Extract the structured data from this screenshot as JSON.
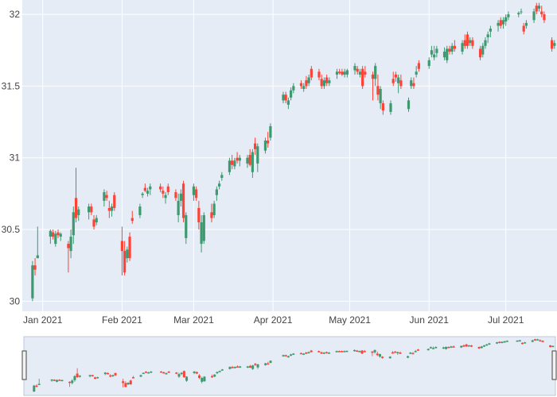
{
  "chart_data": {
    "type": "candlestick",
    "colors": {
      "plot_bg": "#e5ecf6",
      "grid": "#ffffff",
      "increasing": "#3d9970",
      "decreasing": "#ff4136",
      "handle": "#444444"
    },
    "y_ticks": [
      {
        "value": 30,
        "label": "30"
      },
      {
        "value": 30.5,
        "label": "30.5"
      },
      {
        "value": 31,
        "label": "31"
      },
      {
        "value": 31.5,
        "label": "31.5"
      },
      {
        "value": 32,
        "label": "32"
      }
    ],
    "x_ticks": [
      {
        "date": "2021-01-01",
        "label": "Jan 2021"
      },
      {
        "date": "2021-02-01",
        "label": "Feb 2021"
      },
      {
        "date": "2021-03-01",
        "label": "Mar 2021"
      },
      {
        "date": "2021-04-01",
        "label": "Apr 2021"
      },
      {
        "date": "2021-05-01",
        "label": "May 2021"
      },
      {
        "date": "2021-06-01",
        "label": "Jun 2021"
      },
      {
        "date": "2021-07-01",
        "label": "Jul 2021"
      }
    ],
    "x_range": [
      "2020-12-24",
      "2021-07-21"
    ],
    "y_range": [
      29.93,
      32.1
    ],
    "rangeslider": true,
    "candles": [
      [
        "2020-12-28",
        30.02,
        30.28,
        30.0,
        30.25
      ],
      [
        "2020-12-29",
        30.25,
        30.3,
        30.18,
        30.22
      ],
      [
        "2020-12-30",
        30.3,
        30.52,
        30.3,
        30.32
      ],
      [
        "2021-01-04",
        30.45,
        30.5,
        30.4,
        30.49
      ],
      [
        "2021-01-05",
        30.48,
        30.5,
        30.43,
        30.45
      ],
      [
        "2021-01-06",
        30.4,
        30.49,
        30.38,
        30.47
      ],
      [
        "2021-01-07",
        30.48,
        30.5,
        30.44,
        30.46
      ],
      [
        "2021-01-08",
        30.45,
        30.48,
        30.42,
        30.47
      ],
      [
        "2021-01-11",
        30.4,
        30.42,
        30.2,
        30.37
      ],
      [
        "2021-01-12",
        30.35,
        30.5,
        30.3,
        30.45
      ],
      [
        "2021-01-13",
        30.46,
        30.66,
        30.4,
        30.62
      ],
      [
        "2021-01-14",
        30.72,
        30.93,
        30.55,
        30.58
      ],
      [
        "2021-01-15",
        30.6,
        30.66,
        30.56,
        30.64
      ],
      [
        "2021-01-19",
        30.62,
        30.68,
        30.57,
        30.66
      ],
      [
        "2021-01-20",
        30.66,
        30.68,
        30.6,
        30.62
      ],
      [
        "2021-01-21",
        30.57,
        30.6,
        30.5,
        30.52
      ],
      [
        "2021-01-22",
        30.55,
        30.6,
        30.53,
        30.58
      ],
      [
        "2021-01-25",
        30.7,
        30.78,
        30.66,
        30.76
      ],
      [
        "2021-01-26",
        30.74,
        30.77,
        30.7,
        30.72
      ],
      [
        "2021-01-27",
        30.65,
        30.7,
        30.58,
        30.63
      ],
      [
        "2021-01-28",
        30.63,
        30.68,
        30.59,
        30.66
      ],
      [
        "2021-01-29",
        30.74,
        30.76,
        30.63,
        30.65
      ],
      [
        "2021-02-01",
        30.42,
        30.52,
        30.18,
        30.35
      ],
      [
        "2021-02-02",
        30.35,
        30.42,
        30.18,
        30.2
      ],
      [
        "2021-02-03",
        30.3,
        30.38,
        30.27,
        30.36
      ],
      [
        "2021-02-04",
        30.45,
        30.48,
        30.28,
        30.3
      ],
      [
        "2021-02-05",
        30.58,
        30.63,
        30.54,
        30.56
      ],
      [
        "2021-02-08",
        30.6,
        30.68,
        30.58,
        30.66
      ],
      [
        "2021-02-09",
        30.74,
        30.76,
        30.72,
        30.75
      ],
      [
        "2021-02-10",
        30.79,
        30.82,
        30.76,
        30.77
      ],
      [
        "2021-02-11",
        30.75,
        30.79,
        30.73,
        30.77
      ],
      [
        "2021-02-12",
        30.78,
        30.82,
        30.74,
        30.8
      ],
      [
        "2021-02-16",
        30.8,
        30.82,
        30.76,
        30.78
      ],
      [
        "2021-02-17",
        30.77,
        30.8,
        30.72,
        30.75
      ],
      [
        "2021-02-18",
        30.72,
        30.76,
        30.68,
        30.74
      ],
      [
        "2021-02-19",
        30.8,
        30.82,
        30.74,
        30.76
      ],
      [
        "2021-02-22",
        30.76,
        30.78,
        30.7,
        30.72
      ],
      [
        "2021-02-23",
        30.6,
        30.75,
        30.55,
        30.7
      ],
      [
        "2021-02-24",
        30.7,
        30.78,
        30.66,
        30.75
      ],
      [
        "2021-02-25",
        30.82,
        30.84,
        30.55,
        30.58
      ],
      [
        "2021-02-26",
        30.44,
        30.62,
        30.4,
        30.6
      ],
      [
        "2021-03-01",
        30.74,
        30.82,
        30.7,
        30.8
      ],
      [
        "2021-03-02",
        30.78,
        30.8,
        30.7,
        30.72
      ],
      [
        "2021-03-03",
        30.65,
        30.7,
        30.5,
        30.55
      ],
      [
        "2021-03-04",
        30.4,
        30.6,
        30.34,
        30.55
      ],
      [
        "2021-03-05",
        30.42,
        30.62,
        30.4,
        30.6
      ],
      [
        "2021-03-08",
        30.62,
        30.68,
        30.55,
        30.58
      ],
      [
        "2021-03-09",
        30.6,
        30.7,
        30.58,
        30.68
      ],
      [
        "2021-03-10",
        30.74,
        30.8,
        30.7,
        30.78
      ],
      [
        "2021-03-11",
        30.8,
        30.84,
        30.78,
        30.82
      ],
      [
        "2021-03-12",
        30.86,
        30.9,
        30.84,
        30.88
      ],
      [
        "2021-03-15",
        30.9,
        31.0,
        30.88,
        30.98
      ],
      [
        "2021-03-16",
        30.98,
        31.02,
        30.92,
        30.95
      ],
      [
        "2021-03-17",
        30.94,
        31.0,
        30.92,
        30.98
      ],
      [
        "2021-03-18",
        31.0,
        31.04,
        30.96,
        30.98
      ],
      [
        "2021-03-19",
        30.98,
        31.02,
        30.94,
        31.0
      ],
      [
        "2021-03-22",
        30.96,
        31.02,
        30.93,
        31.0
      ],
      [
        "2021-03-23",
        31.02,
        31.06,
        30.94,
        30.95
      ],
      [
        "2021-03-24",
        30.9,
        31.06,
        30.86,
        31.04
      ],
      [
        "2021-03-25",
        31.1,
        31.14,
        31.02,
        31.06
      ],
      [
        "2021-03-26",
        30.96,
        31.1,
        30.9,
        31.08
      ],
      [
        "2021-03-29",
        31.05,
        31.14,
        31.03,
        31.12
      ],
      [
        "2021-03-30",
        31.12,
        31.18,
        31.07,
        31.1
      ],
      [
        "2021-03-31",
        31.14,
        31.24,
        31.12,
        31.22
      ],
      [
        "2021-04-05",
        31.4,
        31.46,
        31.38,
        31.44
      ],
      [
        "2021-04-06",
        31.44,
        31.46,
        31.38,
        31.4
      ],
      [
        "2021-04-07",
        31.37,
        31.42,
        31.34,
        31.4
      ],
      [
        "2021-04-08",
        31.42,
        31.49,
        31.4,
        31.47
      ],
      [
        "2021-04-09",
        31.47,
        31.52,
        31.45,
        31.5
      ],
      [
        "2021-04-12",
        31.52,
        31.54,
        31.48,
        31.5
      ],
      [
        "2021-04-13",
        31.48,
        31.52,
        31.46,
        31.5
      ],
      [
        "2021-04-14",
        31.54,
        31.57,
        31.48,
        31.5
      ],
      [
        "2021-04-15",
        31.52,
        31.58,
        31.5,
        31.56
      ],
      [
        "2021-04-16",
        31.62,
        31.64,
        31.54,
        31.56
      ],
      [
        "2021-04-19",
        31.6,
        31.62,
        31.54,
        31.56
      ],
      [
        "2021-04-20",
        31.55,
        31.58,
        31.48,
        31.5
      ],
      [
        "2021-04-21",
        31.5,
        31.56,
        31.48,
        31.54
      ],
      [
        "2021-04-22",
        31.56,
        31.58,
        31.5,
        31.52
      ],
      [
        "2021-04-23",
        31.52,
        31.56,
        31.5,
        31.54
      ],
      [
        "2021-04-26",
        31.58,
        31.62,
        31.55,
        31.6
      ],
      [
        "2021-04-27",
        31.6,
        31.62,
        31.58,
        31.59
      ],
      [
        "2021-04-28",
        31.6,
        31.62,
        31.57,
        31.58
      ],
      [
        "2021-04-29",
        31.58,
        31.62,
        31.56,
        31.6
      ],
      [
        "2021-04-30",
        31.58,
        31.62,
        31.56,
        31.61
      ],
      [
        "2021-05-03",
        31.61,
        31.66,
        31.58,
        31.64
      ],
      [
        "2021-05-04",
        31.62,
        31.64,
        31.58,
        31.6
      ],
      [
        "2021-05-05",
        31.58,
        31.62,
        31.56,
        31.6
      ],
      [
        "2021-05-06",
        31.62,
        31.64,
        31.48,
        31.5
      ],
      [
        "2021-05-07",
        31.6,
        31.64,
        31.56,
        31.58
      ],
      [
        "2021-05-10",
        31.58,
        31.6,
        31.4,
        31.55
      ],
      [
        "2021-05-11",
        31.55,
        31.66,
        31.5,
        31.64
      ],
      [
        "2021-05-12",
        31.5,
        31.58,
        31.4,
        31.44
      ],
      [
        "2021-05-13",
        31.38,
        31.5,
        31.34,
        31.48
      ],
      [
        "2021-05-14",
        31.38,
        31.4,
        31.3,
        31.33
      ],
      [
        "2021-05-17",
        31.32,
        31.4,
        31.3,
        31.38
      ],
      [
        "2021-05-18",
        31.55,
        31.6,
        31.5,
        31.52
      ],
      [
        "2021-05-19",
        31.58,
        31.6,
        31.53,
        31.56
      ],
      [
        "2021-05-20",
        31.52,
        31.58,
        31.45,
        31.56
      ],
      [
        "2021-05-21",
        31.54,
        31.58,
        31.48,
        31.5
      ],
      [
        "2021-05-24",
        31.34,
        31.42,
        31.32,
        31.4
      ],
      [
        "2021-05-25",
        31.5,
        31.56,
        31.48,
        31.54
      ],
      [
        "2021-05-26",
        31.52,
        31.56,
        31.48,
        31.5
      ],
      [
        "2021-05-27",
        31.58,
        31.64,
        31.56,
        31.6
      ],
      [
        "2021-05-28",
        31.66,
        31.68,
        31.6,
        31.62
      ],
      [
        "2021-06-01",
        31.64,
        31.7,
        31.62,
        31.68
      ],
      [
        "2021-06-02",
        31.72,
        31.78,
        31.7,
        31.75
      ],
      [
        "2021-06-03",
        31.7,
        31.78,
        31.68,
        31.72
      ],
      [
        "2021-06-04",
        31.73,
        31.78,
        31.7,
        31.76
      ],
      [
        "2021-06-07",
        31.7,
        31.77,
        31.68,
        31.74
      ],
      [
        "2021-06-08",
        31.68,
        31.78,
        31.66,
        31.76
      ],
      [
        "2021-06-09",
        31.76,
        31.78,
        31.72,
        31.74
      ],
      [
        "2021-06-10",
        31.74,
        31.8,
        31.72,
        31.78
      ],
      [
        "2021-06-11",
        31.78,
        31.82,
        31.74,
        31.76
      ],
      [
        "2021-06-14",
        31.74,
        31.82,
        31.72,
        31.8
      ],
      [
        "2021-06-15",
        31.82,
        31.86,
        31.76,
        31.78
      ],
      [
        "2021-06-16",
        31.86,
        31.88,
        31.76,
        31.78
      ],
      [
        "2021-06-17",
        31.8,
        31.84,
        31.78,
        31.82
      ],
      [
        "2021-06-18",
        31.82,
        31.84,
        31.76,
        31.78
      ],
      [
        "2021-06-21",
        31.76,
        31.78,
        31.68,
        31.7
      ],
      [
        "2021-06-22",
        31.72,
        31.8,
        31.7,
        31.78
      ],
      [
        "2021-06-23",
        31.78,
        31.84,
        31.76,
        31.82
      ],
      [
        "2021-06-24",
        31.84,
        31.88,
        31.8,
        31.86
      ],
      [
        "2021-06-25",
        31.88,
        31.92,
        31.84,
        31.9
      ],
      [
        "2021-06-28",
        31.92,
        31.96,
        31.88,
        31.94
      ],
      [
        "2021-06-29",
        31.96,
        31.98,
        31.9,
        31.92
      ],
      [
        "2021-06-30",
        31.93,
        31.98,
        31.9,
        31.96
      ],
      [
        "2021-07-01",
        31.95,
        32.0,
        31.92,
        31.98
      ],
      [
        "2021-07-02",
        31.98,
        32.02,
        31.96,
        32.0
      ],
      [
        "2021-07-06",
        32.0,
        32.02,
        31.98,
        32.01
      ],
      [
        "2021-07-07",
        32.02,
        32.04,
        32.0,
        32.02
      ],
      [
        "2021-07-08",
        31.92,
        31.94,
        31.86,
        31.88
      ],
      [
        "2021-07-09",
        31.92,
        31.96,
        31.9,
        31.94
      ],
      [
        "2021-07-12",
        31.96,
        32.04,
        31.94,
        32.02
      ],
      [
        "2021-07-13",
        32.06,
        32.08,
        32.0,
        32.02
      ],
      [
        "2021-07-14",
        32.04,
        32.08,
        32.02,
        32.06
      ],
      [
        "2021-07-15",
        32.02,
        32.06,
        31.98,
        32.0
      ],
      [
        "2021-07-16",
        32.0,
        32.02,
        31.94,
        31.96
      ],
      [
        "2021-07-19",
        31.82,
        31.84,
        31.74,
        31.76
      ],
      [
        "2021-07-20",
        31.78,
        31.82,
        31.76,
        31.8
      ]
    ]
  }
}
